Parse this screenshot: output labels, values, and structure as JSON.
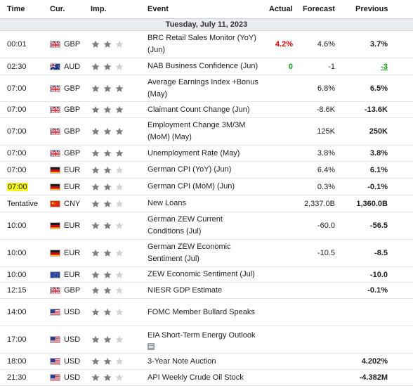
{
  "columns": {
    "time": "Time",
    "currency": "Cur.",
    "importance": "Imp.",
    "event": "Event",
    "actual": "Actual",
    "forecast": "Forecast",
    "previous": "Previous"
  },
  "date_header": "Tuesday, July 11, 2023",
  "colors": {
    "actual_red": "#e30000",
    "actual_green": "#0aa30a",
    "highlight": "#f5f71f",
    "star_filled": "#7d7d7d",
    "star_empty": "#d2d2d2"
  },
  "events": [
    {
      "time": "00:01",
      "flag": "gb-flag-icon",
      "currency": "GBP",
      "importance": 2,
      "event_lines": [
        "BRC Retail Sales Monitor (YoY)",
        "(Jun)"
      ],
      "actual": "4.2%",
      "actual_color": "red",
      "forecast": "4.6%",
      "previous": "3.7%"
    },
    {
      "time": "02:30",
      "flag": "au-flag-icon",
      "currency": "AUD",
      "importance": 2,
      "event_lines": [
        "NAB Business Confidence (Jun)"
      ],
      "actual": "0",
      "actual_color": "green",
      "forecast": "-1",
      "previous": "-3",
      "previous_color": "green"
    },
    {
      "time": "07:00",
      "flag": "gb-flag-icon",
      "currency": "GBP",
      "importance": 3,
      "event_lines": [
        "Average Earnings Index +Bonus",
        "(May)"
      ],
      "actual": "",
      "forecast": "6.8%",
      "previous": "6.5%"
    },
    {
      "time": "07:00",
      "flag": "gb-flag-icon",
      "currency": "GBP",
      "importance": 3,
      "event_lines": [
        "Claimant Count Change (Jun)"
      ],
      "actual": "",
      "forecast": "-8.6K",
      "previous": "-13.6K"
    },
    {
      "time": "07:00",
      "flag": "gb-flag-icon",
      "currency": "GBP",
      "importance": 3,
      "event_lines": [
        "Employment Change 3M/3M",
        "(MoM) (May)"
      ],
      "actual": "",
      "forecast": "125K",
      "previous": "250K"
    },
    {
      "time": "07:00",
      "flag": "gb-flag-icon",
      "currency": "GBP",
      "importance": 3,
      "event_lines": [
        "Unemployment Rate (May)"
      ],
      "actual": "",
      "forecast": "3.8%",
      "previous": "3.8%"
    },
    {
      "time": "07:00",
      "flag": "de-flag-icon",
      "currency": "EUR",
      "importance": 2,
      "event_lines": [
        "German CPI (YoY) (Jun)"
      ],
      "actual": "",
      "forecast": "6.4%",
      "previous": "6.1%"
    },
    {
      "time": "07:00",
      "time_highlighted": true,
      "flag": "de-flag-icon",
      "currency": "EUR",
      "importance": 2,
      "event_lines": [
        "German CPI (MoM) (Jun)"
      ],
      "actual": "",
      "forecast": "0.3%",
      "previous": "-0.1%"
    },
    {
      "time": "Tentative",
      "flag": "cn-flag-icon",
      "currency": "CNY",
      "importance": 2,
      "event_lines": [
        "New Loans"
      ],
      "actual": "",
      "forecast": "2,337.0B",
      "previous": "1,360.0B"
    },
    {
      "time": "10:00",
      "flag": "de-flag-icon",
      "currency": "EUR",
      "importance": 2,
      "event_lines": [
        "German ZEW Current",
        "Conditions (Jul)"
      ],
      "actual": "",
      "forecast": "-60.0",
      "previous": "-56.5"
    },
    {
      "time": "10:00",
      "flag": "de-flag-icon",
      "currency": "EUR",
      "importance": 2,
      "event_lines": [
        "German ZEW Economic",
        "Sentiment (Jul)"
      ],
      "actual": "",
      "forecast": "-10.5",
      "previous": "-8.5"
    },
    {
      "time": "10:00",
      "flag": "eu-flag-icon",
      "currency": "EUR",
      "importance": 2,
      "event_lines": [
        "ZEW Economic Sentiment (Jul)"
      ],
      "actual": "",
      "forecast": "",
      "previous": "-10.0"
    },
    {
      "time": "12:15",
      "flag": "gb-flag-icon",
      "currency": "GBP",
      "importance": 2,
      "event_lines": [
        "NIESR GDP Estimate"
      ],
      "actual": "",
      "forecast": "",
      "previous": "-0.1%"
    },
    {
      "time": "14:00",
      "flag": "us-flag-icon",
      "currency": "USD",
      "importance": 2,
      "event_lines": [
        "FOMC Member Bullard Speaks"
      ],
      "actual": "",
      "forecast": "",
      "previous": ""
    },
    {
      "time": "17:00",
      "flag": "us-flag-icon",
      "currency": "USD",
      "importance": 2,
      "event_lines": [
        "EIA Short-Term Energy Outlook"
      ],
      "has_doc_icon": true,
      "actual": "",
      "forecast": "",
      "previous": ""
    },
    {
      "time": "18:00",
      "flag": "us-flag-icon",
      "currency": "USD",
      "importance": 2,
      "event_lines": [
        "3-Year Note Auction"
      ],
      "actual": "",
      "forecast": "",
      "previous": "4.202%"
    },
    {
      "time": "21:30",
      "flag": "us-flag-icon",
      "currency": "USD",
      "importance": 2,
      "event_lines": [
        "API Weekly Crude Oil Stock"
      ],
      "actual": "",
      "forecast": "",
      "previous": "-4.382M"
    }
  ]
}
